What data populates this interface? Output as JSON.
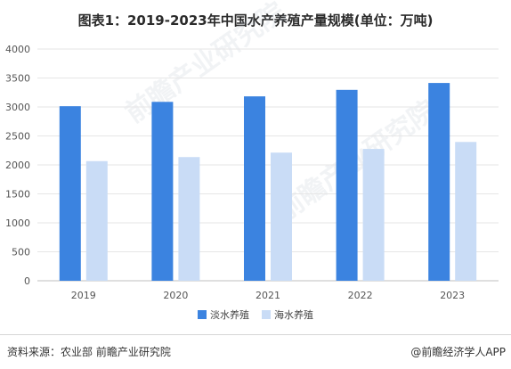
{
  "title": "图表1：2019-2023年中国水产养殖产量规模(单位：万吨)",
  "source": "资料来源：农业部 前瞻产业研究院",
  "brand": "@前瞻经济学人APP",
  "watermark": "前瞻产业研究院",
  "colors": {
    "fresh": "#3b83e0",
    "sea": "#c9dcf6",
    "grid": "#e6e6e6",
    "axis": "#bfbfbf"
  },
  "chart_data": {
    "type": "bar",
    "categories": [
      "2019",
      "2020",
      "2021",
      "2022",
      "2023"
    ],
    "series": [
      {
        "name": "淡水养殖",
        "values": [
          3013,
          3088,
          3183,
          3295,
          3414
        ]
      },
      {
        "name": "海水养殖",
        "values": [
          2065,
          2135,
          2212,
          2276,
          2396
        ]
      }
    ],
    "yticks": [
      "0",
      "500",
      "1000",
      "1500",
      "2000",
      "2500",
      "3000",
      "3500",
      "4000"
    ],
    "ylim": [
      0,
      4000
    ],
    "legend": "bottom-center",
    "grid": true
  }
}
